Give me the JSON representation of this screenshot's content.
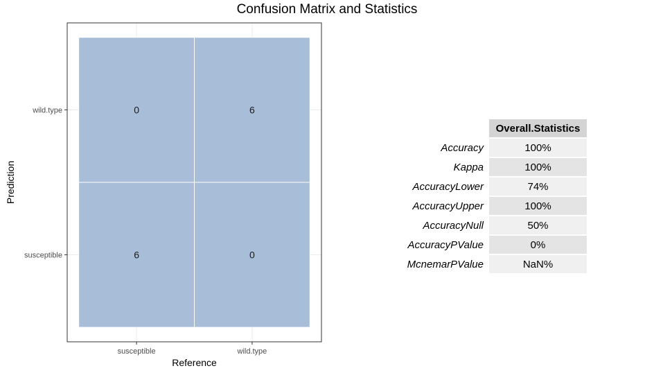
{
  "chart_data": {
    "type": "heatmap",
    "title": "Confusion Matrix and Statistics",
    "xlabel": "Reference",
    "ylabel": "Prediction",
    "x_categories": [
      "susceptible",
      "wild.type"
    ],
    "y_categories": [
      "susceptible",
      "wild.type"
    ],
    "cells": [
      {
        "reference": "susceptible",
        "prediction": "wild.type",
        "value": 0
      },
      {
        "reference": "wild.type",
        "prediction": "wild.type",
        "value": 6
      },
      {
        "reference": "susceptible",
        "prediction": "susceptible",
        "value": 6
      },
      {
        "reference": "wild.type",
        "prediction": "susceptible",
        "value": 0
      }
    ],
    "fill_color": "#a8bdd7",
    "grid": true
  },
  "stats_table": {
    "header": "Overall.Statistics",
    "rows": [
      {
        "name": "Accuracy",
        "value": "100%"
      },
      {
        "name": "Kappa",
        "value": "100%"
      },
      {
        "name": "AccuracyLower",
        "value": "74%"
      },
      {
        "name": "AccuracyUpper",
        "value": "100%"
      },
      {
        "name": "AccuracyNull",
        "value": "50%"
      },
      {
        "name": "AccuracyPValue",
        "value": "0%"
      },
      {
        "name": "McnemarPValue",
        "value": "NaN%"
      }
    ]
  }
}
